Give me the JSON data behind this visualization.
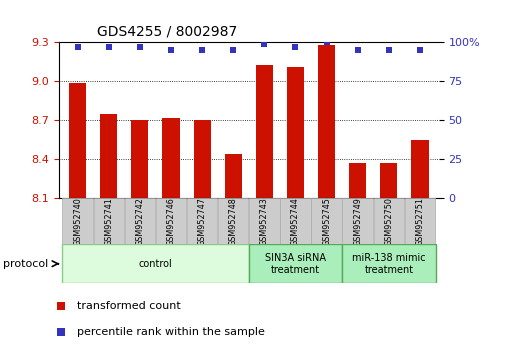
{
  "title": "GDS4255 / 8002987",
  "samples": [
    "GSM952740",
    "GSM952741",
    "GSM952742",
    "GSM952746",
    "GSM952747",
    "GSM952748",
    "GSM952743",
    "GSM952744",
    "GSM952745",
    "GSM952749",
    "GSM952750",
    "GSM952751"
  ],
  "bar_values": [
    8.99,
    8.75,
    8.7,
    8.72,
    8.7,
    8.44,
    9.13,
    9.11,
    9.28,
    8.37,
    8.37,
    8.55
  ],
  "percentile_values": [
    97,
    97,
    97,
    95,
    95,
    95,
    99,
    97,
    100,
    95,
    95,
    95
  ],
  "bar_color": "#cc1100",
  "percentile_color": "#3333bb",
  "y_min": 8.1,
  "y_max": 9.3,
  "y_ticks": [
    8.1,
    8.4,
    8.7,
    9.0,
    9.3
  ],
  "y_right_ticks": [
    0,
    25,
    50,
    75,
    100
  ],
  "group_colors": [
    "#ddfcdd",
    "#aaeebb",
    "#aaeebb"
  ],
  "group_edge_colors": [
    "#88cc88",
    "#55aa55",
    "#55aa55"
  ],
  "group_labels": [
    "control",
    "SIN3A siRNA\ntreatment",
    "miR-138 mimic\ntreatment"
  ],
  "group_ranges": [
    [
      0,
      5
    ],
    [
      6,
      8
    ],
    [
      9,
      11
    ]
  ],
  "sample_box_color": "#cccccc",
  "sample_box_edge": "#aaaaaa",
  "legend_items": [
    {
      "label": "transformed count",
      "color": "#cc1100"
    },
    {
      "label": "percentile rank within the sample",
      "color": "#3333bb"
    }
  ]
}
